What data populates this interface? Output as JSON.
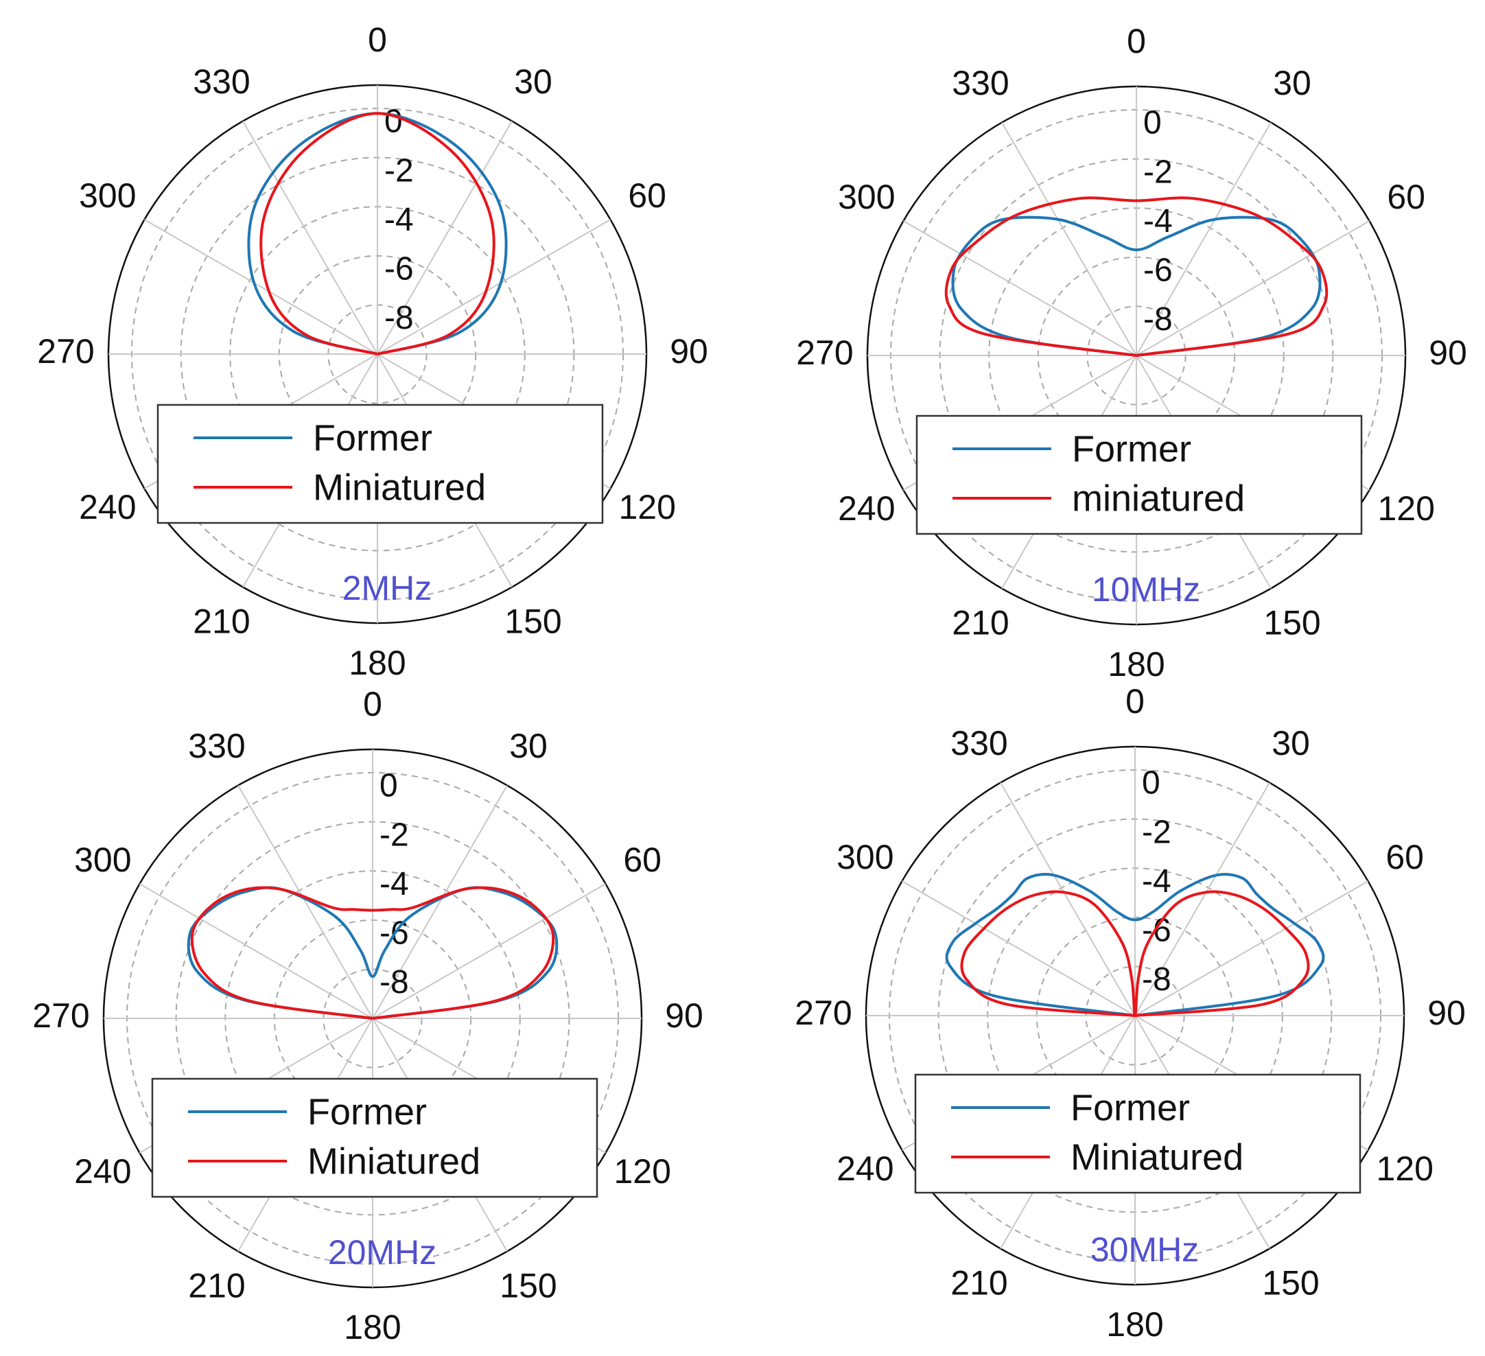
{
  "chart_data": [
    {
      "type": "polar-line",
      "theta_labels": [
        "0",
        "30",
        "60",
        "90",
        "120",
        "150",
        "180",
        "210",
        "240",
        "270",
        "300",
        "330"
      ],
      "r_labels": [
        "0",
        "-2",
        "-4",
        "-6",
        "-8"
      ],
      "rlim": [
        -10,
        0
      ],
      "grid": true,
      "legend_position": "bottom",
      "annotation": "2MHz",
      "series": [
        {
          "name": "Former",
          "color": "#1f77b4",
          "theta": [
            0,
            20,
            40,
            60,
            75,
            90
          ],
          "values": [
            -0.2,
            -0.9,
            -2.2,
            -4.2,
            -6.5,
            -10
          ]
        },
        {
          "name": "Miniatured",
          "color": "#e8151b",
          "theta": [
            0,
            20,
            40,
            60,
            75,
            90
          ],
          "values": [
            -0.2,
            -1.2,
            -2.8,
            -4.9,
            -7.0,
            -10
          ]
        }
      ]
    },
    {
      "type": "polar-line",
      "theta_labels": [
        "0",
        "30",
        "60",
        "90",
        "120",
        "150",
        "180",
        "210",
        "240",
        "270",
        "300",
        "330"
      ],
      "r_labels": [
        "0",
        "-2",
        "-4",
        "-6",
        "-8"
      ],
      "rlim": [
        -10,
        0
      ],
      "grid": true,
      "legend_position": "bottom",
      "annotation": "10MHz",
      "series": [
        {
          "name": "Former",
          "color": "#1f77b4",
          "theta": [
            0,
            15,
            30,
            45,
            55,
            65,
            75,
            82,
            90
          ],
          "values": [
            -5.7,
            -5.0,
            -3.6,
            -2.2,
            -1.8,
            -1.8,
            -2.6,
            -4.8,
            -10
          ]
        },
        {
          "name": "miniatured",
          "color": "#e8151b",
          "theta": [
            0,
            20,
            40,
            55,
            65,
            75,
            82,
            90
          ],
          "values": [
            -3.7,
            -3.2,
            -2.5,
            -2.0,
            -1.7,
            -2.1,
            -3.8,
            -10
          ]
        }
      ]
    },
    {
      "type": "polar-line",
      "theta_labels": [
        "0",
        "30",
        "60",
        "90",
        "120",
        "150",
        "180",
        "210",
        "240",
        "270",
        "300",
        "330"
      ],
      "r_labels": [
        "0",
        "-2",
        "-4",
        "-6",
        "-8"
      ],
      "rlim": [
        -10,
        0
      ],
      "grid": true,
      "legend_position": "bottom",
      "annotation": "20MHz",
      "series": [
        {
          "name": "Former",
          "color": "#1f77b4",
          "theta": [
            0,
            10,
            20,
            35,
            45,
            55,
            65,
            75,
            82,
            90
          ],
          "values": [
            -8.3,
            -7.2,
            -5.6,
            -3.6,
            -2.7,
            -2.1,
            -1.8,
            -2.6,
            -4.8,
            -10
          ]
        },
        {
          "name": "Miniatured",
          "color": "#e8151b",
          "theta": [
            0,
            10,
            20,
            35,
            45,
            55,
            65,
            75,
            82,
            90
          ],
          "values": [
            -5.6,
            -5.5,
            -5.2,
            -3.6,
            -2.6,
            -2.0,
            -1.9,
            -2.9,
            -5.0,
            -10
          ]
        }
      ]
    },
    {
      "type": "polar-line",
      "theta_labels": [
        "0",
        "30",
        "60",
        "90",
        "120",
        "150",
        "180",
        "210",
        "240",
        "270",
        "300",
        "330"
      ],
      "r_labels": [
        "0",
        "-2",
        "-4",
        "-6",
        "-8"
      ],
      "rlim": [
        -10,
        0
      ],
      "grid": true,
      "legend_position": "bottom",
      "annotation": "30MHz",
      "series": [
        {
          "name": "Former",
          "color": "#1f77b4",
          "theta": [
            0,
            10,
            20,
            30,
            38,
            45,
            52,
            60,
            68,
            75,
            82,
            90
          ],
          "values": [
            -6.1,
            -5.7,
            -4.6,
            -3.4,
            -2.9,
            -3.0,
            -2.9,
            -2.5,
            -2.0,
            -2.2,
            -4.2,
            -10
          ]
        },
        {
          "name": "Miniatured",
          "color": "#e8151b",
          "theta": [
            0,
            5,
            10,
            20,
            30,
            40,
            50,
            60,
            70,
            78,
            85,
            90
          ],
          "values": [
            -10,
            -8.5,
            -7.0,
            -5.2,
            -4.2,
            -3.6,
            -3.2,
            -2.9,
            -2.6,
            -3.0,
            -4.8,
            -10
          ]
        }
      ]
    }
  ]
}
